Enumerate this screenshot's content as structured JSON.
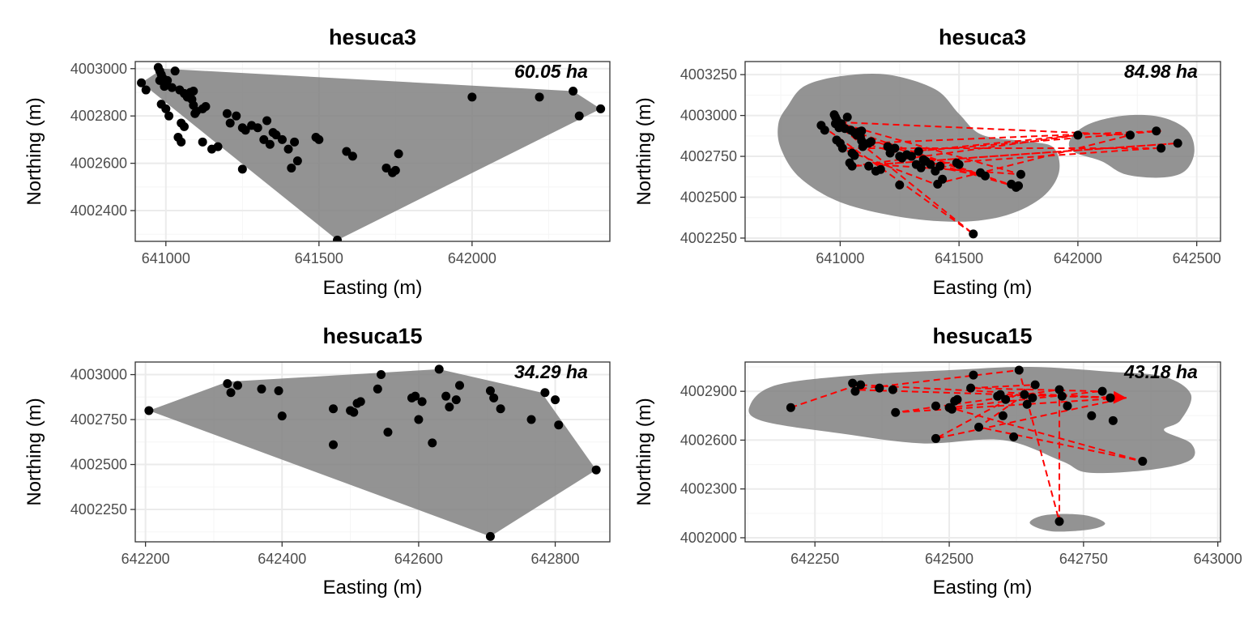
{
  "colors": {
    "background": "#ffffff",
    "panel_border": "#333333",
    "grid_major": "#ebebeb",
    "grid_minor": "#f5f5f5",
    "hull_fill": "#808080",
    "kde_fill": "#808080",
    "points": "#000000",
    "track": "#ff0000",
    "tick_text": "#4d4d4d",
    "text": "#000000"
  },
  "chart_data": [
    {
      "id": "p1",
      "type": "scatter",
      "overlay": "minimum-convex-polygon",
      "title": "hesuca3",
      "xlabel": "Easting (m)",
      "ylabel": "Northing (m)",
      "area_label": "60.05  ha",
      "xlim": [
        640900,
        642450
      ],
      "ylim": [
        4002270,
        4003030
      ],
      "xticks": [
        641000,
        641500,
        642000
      ],
      "yticks": [
        4002400,
        4002600,
        4002800,
        4003000
      ],
      "hull": [
        [
          640920,
          4002940
        ],
        [
          640990,
          4003000
        ],
        [
          642330,
          4002905
        ],
        [
          642420,
          4002830
        ],
        [
          641560,
          4002275
        ]
      ],
      "x": [
        640920,
        640935,
        640975,
        640980,
        640985,
        640990,
        640995,
        641000,
        641005,
        640980,
        640995,
        641030,
        640985,
        641000,
        641010,
        641020,
        641045,
        641060,
        641075,
        641080,
        641085,
        641090,
        641050,
        641060,
        641070,
        641090,
        641100,
        641120,
        641130,
        641095,
        641150,
        641170,
        641200,
        641210,
        641230,
        641250,
        641260,
        641280,
        641300,
        641330,
        641350,
        641360,
        641320,
        641340,
        641380,
        641400,
        641420,
        641410,
        641430,
        641490,
        641500,
        641590,
        641610,
        641720,
        641740,
        641760,
        641750,
        641560,
        641250,
        641050,
        641040,
        641120,
        642000,
        642220,
        642330,
        642350,
        642420
      ],
      "y": [
        4002940,
        4002910,
        4003005,
        4002990,
        4002975,
        4002960,
        4002945,
        4002930,
        4002950,
        4002950,
        4002925,
        4002990,
        4002850,
        4002830,
        4002800,
        4002920,
        4002910,
        4002895,
        4002880,
        4002900,
        4002870,
        4002905,
        4002770,
        4002755,
        4002880,
        4002845,
        4002820,
        4002830,
        4002840,
        4002810,
        4002660,
        4002670,
        4002810,
        4002770,
        4002800,
        4002750,
        4002740,
        4002760,
        4002750,
        4002780,
        4002730,
        4002720,
        4002700,
        4002680,
        4002700,
        4002660,
        4002690,
        4002580,
        4002610,
        4002710,
        4002700,
        4002650,
        4002630,
        4002580,
        4002560,
        4002640,
        4002570,
        4002275,
        4002575,
        4002690,
        4002710,
        4002690,
        4002880,
        4002880,
        4002905,
        4002800,
        4002830
      ]
    },
    {
      "id": "p2",
      "type": "scatter",
      "overlay": "kernel-density-with-track",
      "title": "hesuca3",
      "xlabel": "Easting (m)",
      "ylabel": "Northing (m)",
      "area_label": "84.98  ha",
      "xlim": [
        640600,
        642600
      ],
      "ylim": [
        4002230,
        4003330
      ],
      "xticks": [
        641000,
        641500,
        642000,
        642500
      ],
      "yticks": [
        4002250,
        4002500,
        4002750,
        4003000,
        4003250
      ],
      "kde_regions": [
        [
          [
            640780,
            4003060
          ],
          [
            640850,
            4003180
          ],
          [
            641000,
            4003240
          ],
          [
            641200,
            4003250
          ],
          [
            641400,
            4003160
          ],
          [
            641500,
            4003010
          ],
          [
            641600,
            4002880
          ],
          [
            641800,
            4002840
          ],
          [
            641900,
            4002800
          ],
          [
            641920,
            4002650
          ],
          [
            641850,
            4002500
          ],
          [
            641700,
            4002390
          ],
          [
            641500,
            4002350
          ],
          [
            641250,
            4002380
          ],
          [
            641000,
            4002470
          ],
          [
            640830,
            4002620
          ],
          [
            640750,
            4002800
          ],
          [
            640740,
            4002950
          ]
        ],
        [
          [
            642100,
            4002720
          ],
          [
            642200,
            4002640
          ],
          [
            642350,
            4002620
          ],
          [
            642450,
            4002660
          ],
          [
            642490,
            4002780
          ],
          [
            642460,
            4002910
          ],
          [
            642350,
            4002990
          ],
          [
            642200,
            4003000
          ],
          [
            642050,
            4002950
          ],
          [
            641970,
            4002860
          ],
          [
            641980,
            4002780
          ]
        ]
      ],
      "track": [
        [
          640920,
          4002940
        ],
        [
          641560,
          4002275
        ],
        [
          641000,
          4002930
        ],
        [
          641750,
          4002560
        ],
        [
          641100,
          4002830
        ],
        [
          642350,
          4002905
        ],
        [
          641300,
          4002780
        ],
        [
          642000,
          4002880
        ],
        [
          641050,
          4002690
        ],
        [
          642420,
          4002830
        ],
        [
          641150,
          4002700
        ],
        [
          641760,
          4002640
        ],
        [
          640980,
          4002960
        ],
        [
          642220,
          4002880
        ],
        [
          641400,
          4002580
        ],
        [
          641000,
          4002800
        ],
        [
          642330,
          4002800
        ],
        [
          641350,
          4002700
        ],
        [
          641600,
          4002630
        ],
        [
          641020,
          4002900
        ],
        [
          640990,
          4002990
        ]
      ],
      "x": [
        640920,
        640935,
        640975,
        640980,
        640985,
        640990,
        640995,
        641000,
        641005,
        640980,
        640995,
        641030,
        640985,
        641000,
        641010,
        641020,
        641045,
        641060,
        641075,
        641080,
        641085,
        641090,
        641050,
        641060,
        641070,
        641090,
        641100,
        641120,
        641130,
        641095,
        641150,
        641170,
        641200,
        641210,
        641230,
        641250,
        641260,
        641280,
        641300,
        641330,
        641350,
        641360,
        641320,
        641340,
        641380,
        641400,
        641420,
        641410,
        641430,
        641490,
        641500,
        641590,
        641610,
        641720,
        641740,
        641760,
        641750,
        641560,
        641250,
        641050,
        641040,
        641120,
        642000,
        642220,
        642330,
        642350,
        642420
      ],
      "y": [
        4002940,
        4002910,
        4003005,
        4002990,
        4002975,
        4002960,
        4002945,
        4002930,
        4002950,
        4002950,
        4002925,
        4002990,
        4002850,
        4002830,
        4002800,
        4002920,
        4002910,
        4002895,
        4002880,
        4002900,
        4002870,
        4002905,
        4002770,
        4002755,
        4002880,
        4002845,
        4002820,
        4002830,
        4002840,
        4002810,
        4002660,
        4002670,
        4002810,
        4002770,
        4002800,
        4002750,
        4002740,
        4002760,
        4002750,
        4002780,
        4002730,
        4002720,
        4002700,
        4002680,
        4002700,
        4002660,
        4002690,
        4002580,
        4002610,
        4002710,
        4002700,
        4002650,
        4002630,
        4002580,
        4002560,
        4002640,
        4002570,
        4002275,
        4002575,
        4002690,
        4002710,
        4002690,
        4002880,
        4002880,
        4002905,
        4002800,
        4002830
      ]
    },
    {
      "id": "p3",
      "type": "scatter",
      "overlay": "minimum-convex-polygon",
      "title": "hesuca15",
      "xlabel": "Easting (m)",
      "ylabel": "Northing (m)",
      "area_label": "34.29  ha",
      "xlim": [
        642185,
        642880
      ],
      "ylim": [
        4002070,
        4003070
      ],
      "xticks": [
        642200,
        642400,
        642600,
        642800
      ],
      "yticks": [
        4002250,
        4002500,
        4002750,
        4003000
      ],
      "hull": [
        [
          642205,
          4002800
        ],
        [
          642320,
          4002960
        ],
        [
          642630,
          4003030
        ],
        [
          642780,
          4002900
        ],
        [
          642860,
          4002470
        ],
        [
          642705,
          4002100
        ]
      ],
      "x": [
        642205,
        642320,
        642325,
        642335,
        642370,
        642395,
        642400,
        642475,
        642475,
        642500,
        642505,
        642510,
        642515,
        642540,
        642545,
        642555,
        642590,
        642595,
        642600,
        642605,
        642620,
        642630,
        642640,
        642645,
        642655,
        642660,
        642705,
        642710,
        642720,
        642765,
        642785,
        642800,
        642805,
        642860,
        642705
      ],
      "y": [
        4002800,
        4002950,
        4002900,
        4002940,
        4002920,
        4002910,
        4002770,
        4002810,
        4002610,
        4002800,
        4002790,
        4002840,
        4002850,
        4002920,
        4003000,
        4002680,
        4002870,
        4002880,
        4002750,
        4002850,
        4002620,
        4003030,
        4002880,
        4002820,
        4002860,
        4002940,
        4002910,
        4002870,
        4002810,
        4002750,
        4002900,
        4002860,
        4002720,
        4002470,
        4002100
      ]
    },
    {
      "id": "p4",
      "type": "scatter",
      "overlay": "kernel-density-with-track",
      "title": "hesuca15",
      "xlabel": "Easting (m)",
      "ylabel": "Northing (m)",
      "area_label": "43.18  ha",
      "xlim": [
        642120,
        643005
      ],
      "ylim": [
        4001975,
        4003080
      ],
      "xticks": [
        642250,
        642500,
        642750,
        643000
      ],
      "yticks": [
        4002000,
        4002300,
        4002600,
        4002900
      ],
      "kde_regions": [
        [
          [
            642130,
            4002820
          ],
          [
            642180,
            4002940
          ],
          [
            642330,
            4003000
          ],
          [
            642500,
            4003030
          ],
          [
            642650,
            4003050
          ],
          [
            642800,
            4003020
          ],
          [
            642900,
            4002990
          ],
          [
            642950,
            4002880
          ],
          [
            642930,
            4002720
          ],
          [
            642900,
            4002660
          ],
          [
            642950,
            4002580
          ],
          [
            642950,
            4002480
          ],
          [
            642880,
            4002420
          ],
          [
            642760,
            4002400
          ],
          [
            642710,
            4002470
          ],
          [
            642600,
            4002600
          ],
          [
            642450,
            4002580
          ],
          [
            642300,
            4002640
          ],
          [
            642150,
            4002720
          ]
        ],
        [
          [
            642650,
            4002090
          ],
          [
            642690,
            4002040
          ],
          [
            642760,
            4002050
          ],
          [
            642790,
            4002090
          ],
          [
            642750,
            4002140
          ],
          [
            642680,
            4002140
          ]
        ]
      ],
      "track": [
        [
          642205,
          4002800
        ],
        [
          642330,
          4002940
        ],
        [
          642800,
          4002860
        ],
        [
          642320,
          4002910
        ],
        [
          642630,
          4003030
        ],
        [
          642705,
          4002100
        ],
        [
          642705,
          4002910
        ],
        [
          642400,
          4002770
        ],
        [
          642830,
          4002860
        ],
        [
          642475,
          4002610
        ],
        [
          642660,
          4002940
        ],
        [
          642540,
          4002920
        ],
        [
          642780,
          4002900
        ],
        [
          642500,
          4002800
        ],
        [
          642860,
          4002470
        ],
        [
          642555,
          4002680
        ],
        [
          642640,
          4002880
        ],
        [
          642830,
          4002860
        ]
      ],
      "x": [
        642205,
        642320,
        642325,
        642335,
        642370,
        642395,
        642400,
        642475,
        642475,
        642500,
        642505,
        642510,
        642515,
        642540,
        642545,
        642555,
        642590,
        642595,
        642600,
        642605,
        642620,
        642630,
        642640,
        642645,
        642655,
        642660,
        642705,
        642710,
        642720,
        642765,
        642785,
        642800,
        642805,
        642860,
        642705
      ],
      "y": [
        4002800,
        4002950,
        4002900,
        4002940,
        4002920,
        4002910,
        4002770,
        4002810,
        4002610,
        4002800,
        4002790,
        4002840,
        4002850,
        4002920,
        4003000,
        4002680,
        4002870,
        4002880,
        4002750,
        4002850,
        4002620,
        4003030,
        4002880,
        4002820,
        4002860,
        4002940,
        4002910,
        4002870,
        4002810,
        4002750,
        4002900,
        4002860,
        4002720,
        4002470,
        4002100
      ]
    }
  ]
}
